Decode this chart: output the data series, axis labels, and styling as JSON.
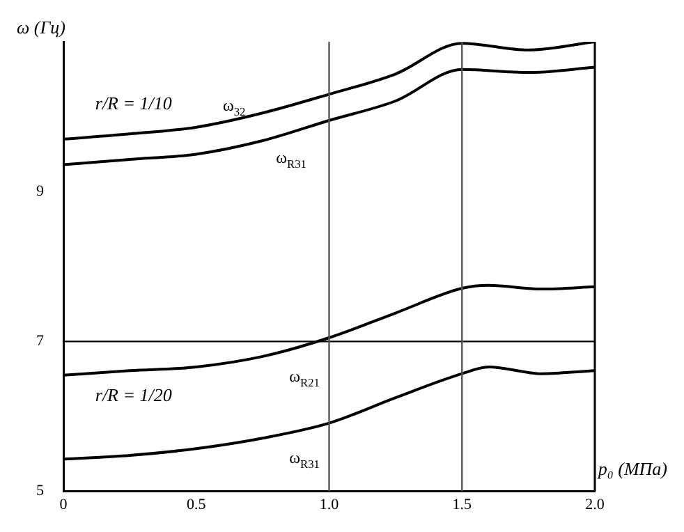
{
  "chart_data": {
    "type": "line",
    "xlabel": "p₀ (МПа)",
    "ylabel": "ω (Гц)",
    "xlim": [
      0,
      2
    ],
    "xticks": [
      0,
      {
        "value": 0.5,
        "label": "0.5"
      },
      {
        "value": 1,
        "label": "1.0"
      },
      {
        "value": 1.5,
        "label": "1.5"
      },
      {
        "value": 2,
        "label": "2.0"
      }
    ],
    "ylim": [
      5,
      11
    ],
    "yticks": [
      5,
      7,
      9
    ],
    "grid": false,
    "legend": false,
    "marker": "none",
    "line_style": "solid",
    "ref_lines": [
      {
        "axis": "y",
        "value": 7,
        "color": "#000000"
      },
      {
        "axis": "x",
        "value": 1,
        "color": "#555555"
      },
      {
        "axis": "x",
        "value": 1.5,
        "color": "#555555"
      }
    ],
    "annotations": [
      "r/R = 1/10",
      "r/R = 1/20"
    ],
    "series": [
      {
        "name": "ω$_{32}$",
        "color": "#000000",
        "x": [
          0,
          0.25,
          0.5,
          0.75,
          1,
          1.25,
          1.5,
          1.75,
          2
        ],
        "values": [
          9.7,
          9.77,
          9.86,
          10.05,
          10.3,
          10.57,
          10.98,
          10.89,
          11
        ]
      },
      {
        "name": "ω$_{R31}$",
        "color": "#000000",
        "x": [
          0,
          0.25,
          0.5,
          0.75,
          1,
          1.25,
          1.5,
          1.75,
          2
        ],
        "values": [
          9.36,
          9.43,
          9.5,
          9.68,
          9.95,
          10.21,
          10.63,
          10.59,
          10.66
        ]
      },
      {
        "name": "ω$_{R21}$",
        "color": "#000000",
        "x": [
          0,
          0.25,
          0.5,
          0.75,
          1,
          1.25,
          1.5,
          1.6,
          1.8,
          2
        ],
        "values": [
          6.55,
          6.61,
          6.66,
          6.8,
          7.05,
          7.38,
          7.71,
          7.75,
          7.7,
          7.73
        ]
      },
      {
        "name": "ω$_{R31}$",
        "color": "#000000",
        "x": [
          0,
          0.25,
          0.5,
          0.75,
          1,
          1.25,
          1.5,
          1.6,
          1.8,
          2
        ],
        "values": [
          5.43,
          5.48,
          5.57,
          5.71,
          5.91,
          6.25,
          6.57,
          6.66,
          6.57,
          6.61
        ]
      }
    ]
  }
}
